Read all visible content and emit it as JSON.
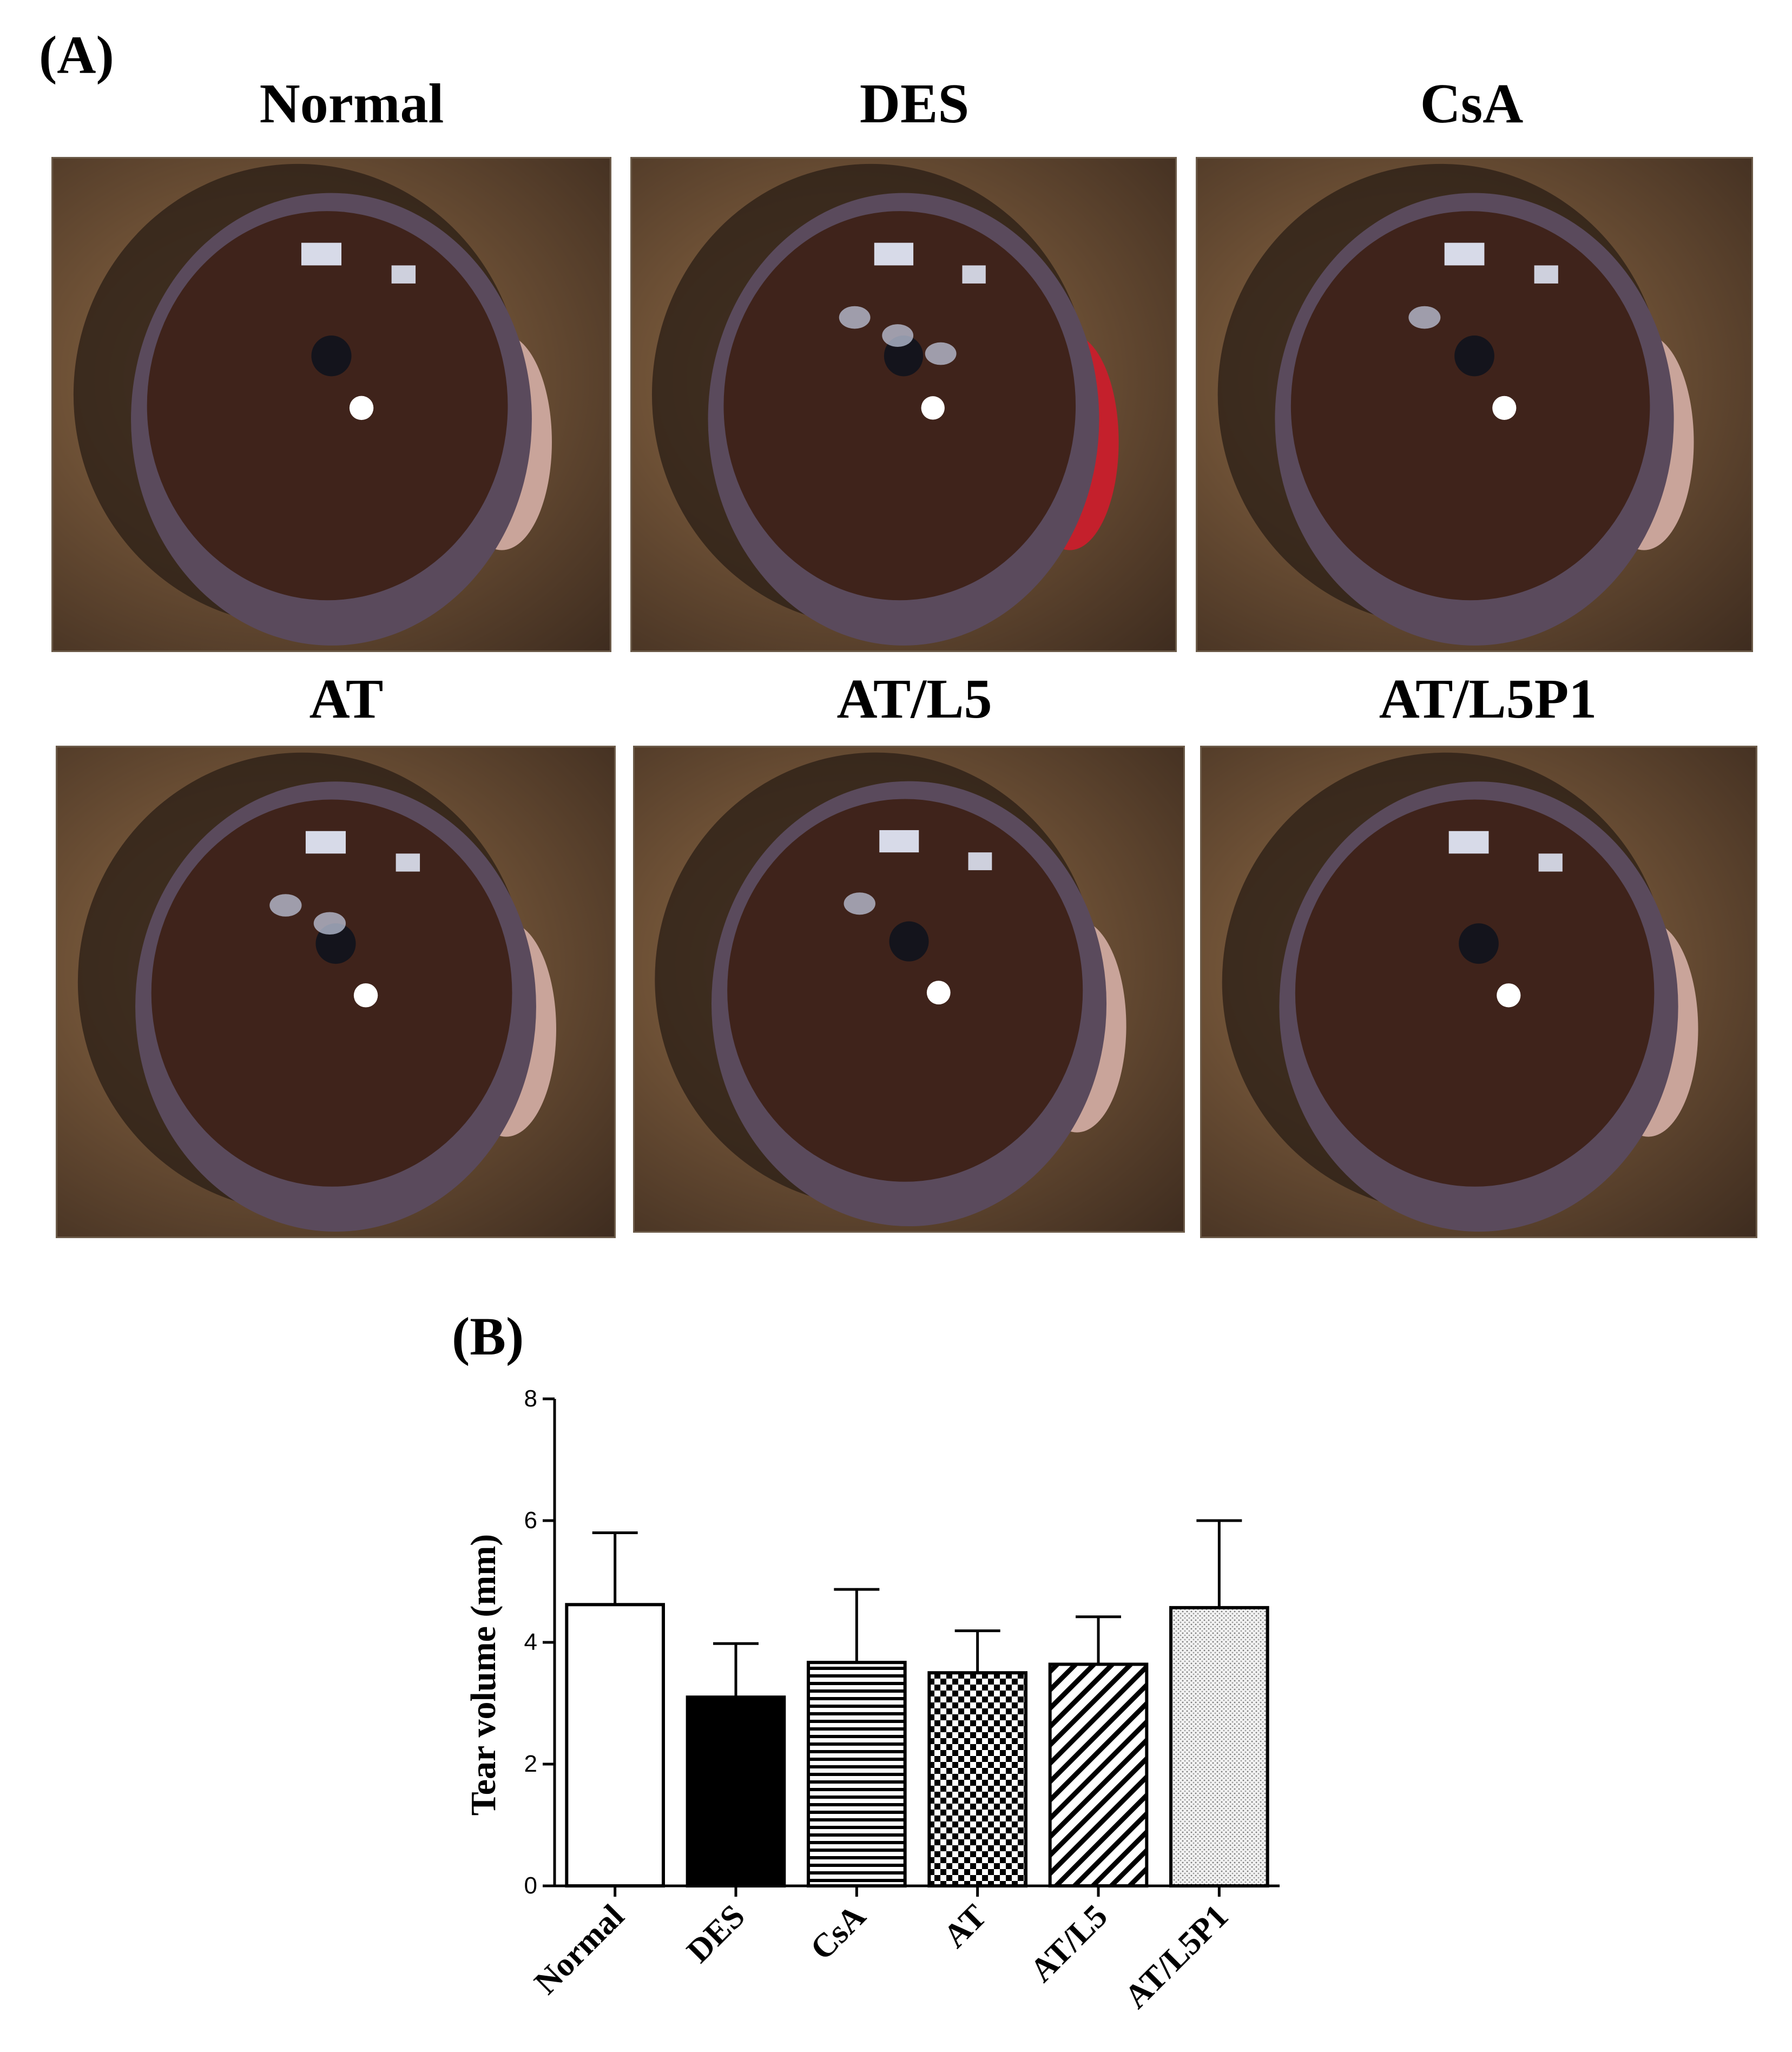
{
  "panel_a": {
    "label": "(A)",
    "images": [
      {
        "title": "Normal",
        "hyperemia": false,
        "spots": 0
      },
      {
        "title": "DES",
        "hyperemia": true,
        "spots": 3
      },
      {
        "title": "CsA",
        "hyperemia": false,
        "spots": 1
      },
      {
        "title": "AT",
        "hyperemia": false,
        "spots": 2
      },
      {
        "title": "AT/L5",
        "hyperemia": false,
        "spots": 1
      },
      {
        "title": "AT/L5P1",
        "hyperemia": false,
        "spots": 0
      }
    ]
  },
  "panel_b": {
    "label": "(B)"
  },
  "chart_data": {
    "type": "bar",
    "title": "",
    "xlabel": "",
    "ylabel": "Tear volume (mm)",
    "ylim": [
      0,
      8
    ],
    "yticks": [
      "0",
      "2",
      "4",
      "6",
      "8"
    ],
    "categories": [
      "Normal",
      "DES",
      "CsA",
      "AT",
      "AT/L5",
      "AT/L5P1"
    ],
    "values": [
      4.62,
      3.1,
      3.67,
      3.5,
      3.64,
      4.57
    ],
    "errors": [
      1.18,
      0.88,
      1.2,
      0.69,
      0.78,
      1.43
    ],
    "fills": [
      "white",
      "black",
      "horizontal-lines",
      "checkerboard",
      "diagonal-lines",
      "fine-dots"
    ],
    "legend": "none",
    "grid": false
  }
}
